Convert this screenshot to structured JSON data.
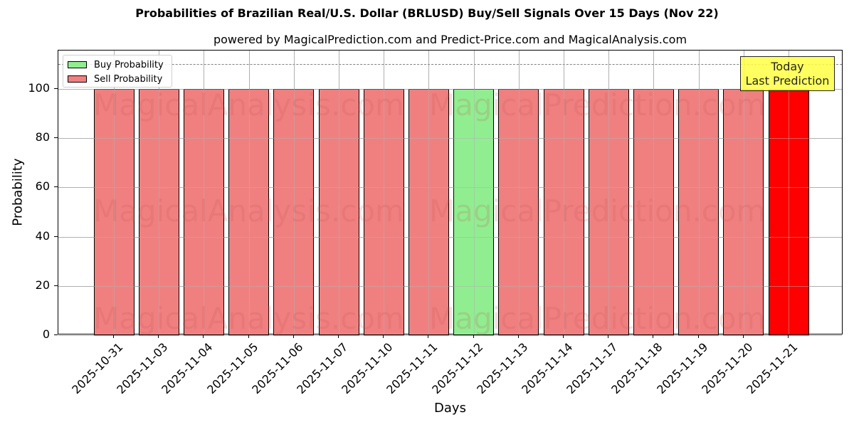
{
  "title": "Probabilities of Brazilian Real/U.S. Dollar (BRLUSD) Buy/Sell Signals Over 15 Days (Nov 22)",
  "subtitle": "powered by MagicalPrediction.com and Predict-Price.com and MagicalAnalysis.com",
  "xlabel": "Days",
  "ylabel": "Probability",
  "legend": {
    "buy": "Buy Probability",
    "sell": "Sell Probability"
  },
  "annotation": {
    "line1": "Today",
    "line2": "Last Prediction"
  },
  "watermarks": [
    "MagicalAnalysis.com",
    "MagicalPrediction.com"
  ],
  "colors": {
    "buy": "#90ee90",
    "sell": "#f08080",
    "today": "#ff0000",
    "annotation_bg": "#ffff44",
    "threshold_line": "#808080"
  },
  "yticks": [
    "0",
    "20",
    "40",
    "60",
    "80",
    "100"
  ],
  "chart_data": {
    "type": "bar",
    "title": "Probabilities of Brazilian Real/U.S. Dollar (BRLUSD) Buy/Sell Signals Over 15 Days (Nov 22)",
    "subtitle": "powered by MagicalPrediction.com and Predict-Price.com and MagicalAnalysis.com",
    "xlabel": "Days",
    "ylabel": "Probability",
    "ylim": [
      0,
      115
    ],
    "grid": true,
    "legend_position": "upper left",
    "threshold_line": 110,
    "categories": [
      "2025-10-31",
      "2025-11-03",
      "2025-11-04",
      "2025-11-05",
      "2025-11-06",
      "2025-11-07",
      "2025-11-10",
      "2025-11-11",
      "2025-11-12",
      "2025-11-13",
      "2025-11-14",
      "2025-11-17",
      "2025-11-18",
      "2025-11-19",
      "2025-11-20",
      "2025-11-21"
    ],
    "series": [
      {
        "name": "Buy Probability",
        "values": [
          0,
          0,
          0,
          0,
          0,
          0,
          0,
          0,
          100,
          0,
          0,
          0,
          0,
          0,
          0,
          0
        ]
      },
      {
        "name": "Sell Probability",
        "values": [
          100,
          100,
          100,
          100,
          100,
          100,
          100,
          100,
          0,
          100,
          100,
          100,
          100,
          100,
          100,
          100
        ]
      }
    ],
    "bar_signals": [
      "sell",
      "sell",
      "sell",
      "sell",
      "sell",
      "sell",
      "sell",
      "sell",
      "buy",
      "sell",
      "sell",
      "sell",
      "sell",
      "sell",
      "sell",
      "today"
    ],
    "annotations": [
      {
        "text": "Today\nLast Prediction",
        "x": "2025-11-21"
      }
    ]
  }
}
